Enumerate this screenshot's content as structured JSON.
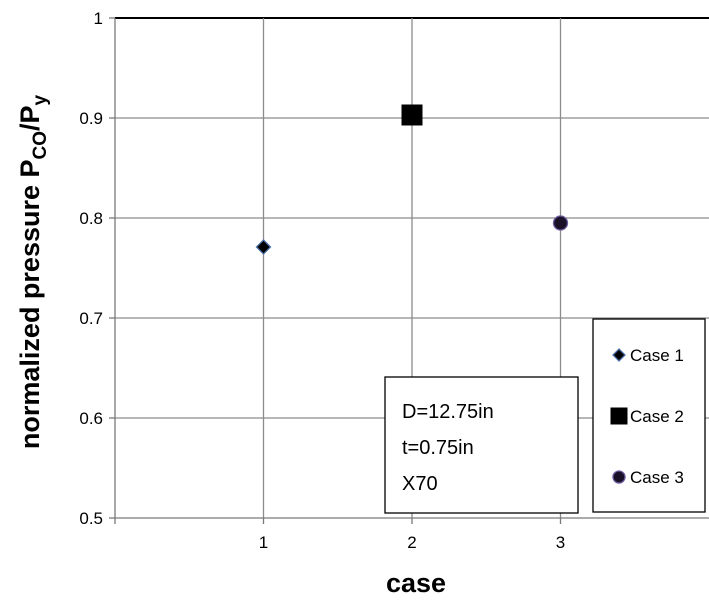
{
  "chart_data": {
    "type": "scatter",
    "xlabel": "case",
    "ylabel": {
      "main": "normalized pressure P",
      "sub1": "CO",
      "mid": "/P",
      "sub2": "y"
    },
    "xlim": [
      0,
      4
    ],
    "ylim": [
      0.5,
      1
    ],
    "x_ticks": [
      1,
      2,
      3
    ],
    "y_ticks": [
      0.5,
      0.6,
      0.7,
      0.8,
      0.9,
      1
    ],
    "y_tick_labels": [
      "0.5",
      "0.6",
      "0.7",
      "0.8",
      "0.9",
      "1"
    ],
    "grid": true,
    "legend_position": "right",
    "series": [
      {
        "name": "Case 1",
        "marker": "diamond",
        "color": "#000000",
        "edge": "#4a6fa5",
        "x": [
          1
        ],
        "y": [
          0.771
        ]
      },
      {
        "name": "Case 2",
        "marker": "square",
        "color": "#000000",
        "edge": "#000000",
        "x": [
          2
        ],
        "y": [
          0.903
        ]
      },
      {
        "name": "Case 3",
        "marker": "circle",
        "color": "#1a1028",
        "edge": "#6b5a9e",
        "x": [
          3
        ],
        "y": [
          0.795
        ]
      }
    ],
    "annotation": [
      "D=12.75in",
      "t=0.75in",
      "X70"
    ]
  }
}
